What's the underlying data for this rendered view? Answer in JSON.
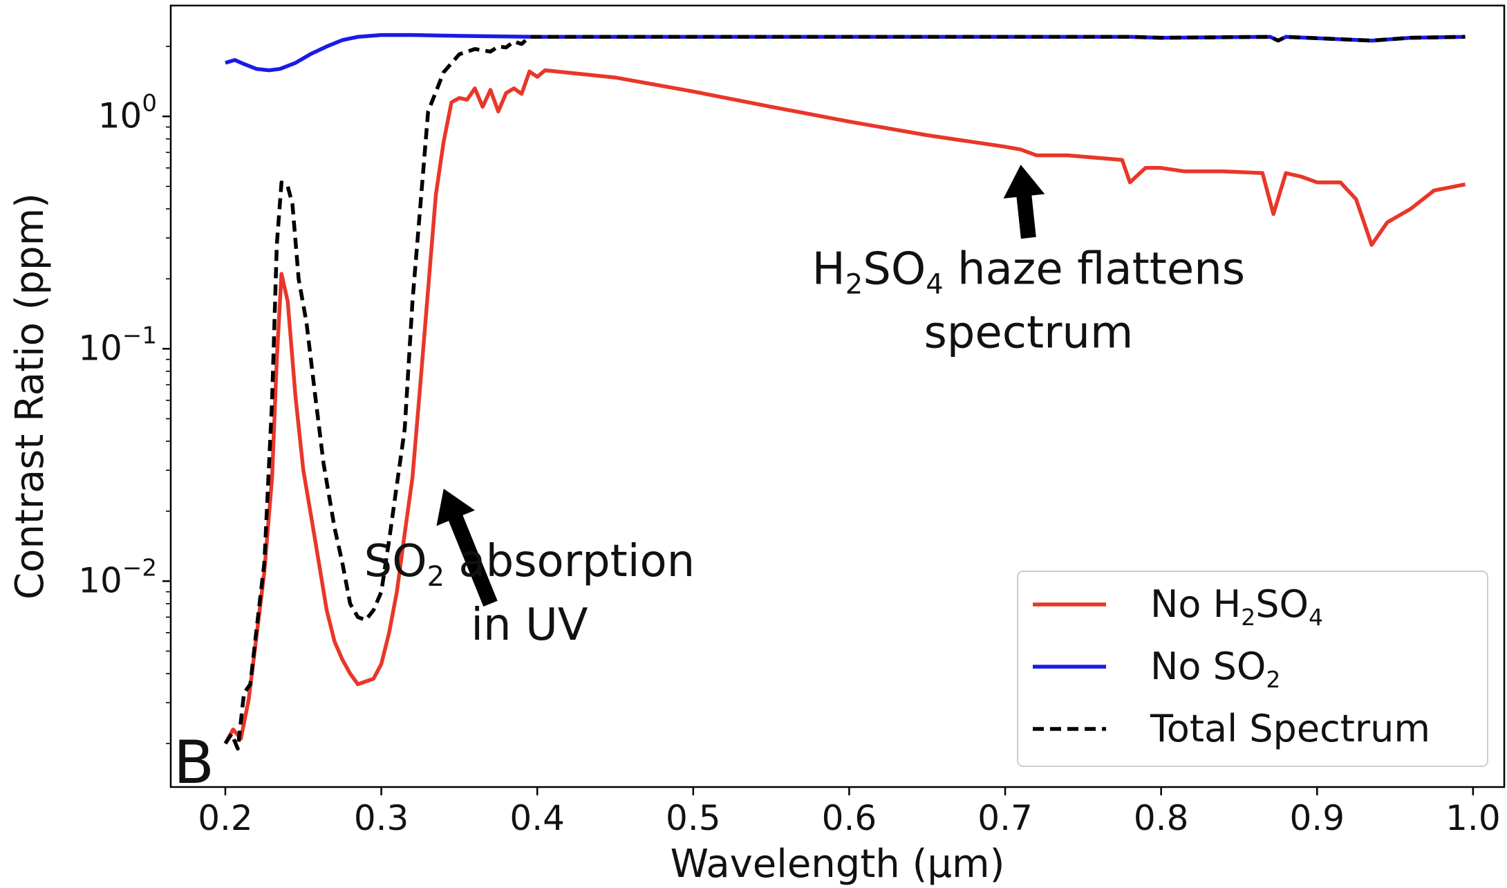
{
  "chart_data": {
    "type": "line",
    "title": "",
    "panel_label": "B",
    "xlabel": "Wavelength (μm)",
    "ylabel": "Contrast Ratio (ppm)",
    "yscale": "log",
    "xlim": [
      0.165,
      1.02
    ],
    "ylim": [
      0.0013,
      3.0
    ],
    "xticks": [
      {
        "value": 0.2,
        "label": "0.2"
      },
      {
        "value": 0.3,
        "label": "0.3"
      },
      {
        "value": 0.4,
        "label": "0.4"
      },
      {
        "value": 0.5,
        "label": "0.5"
      },
      {
        "value": 0.6,
        "label": "0.6"
      },
      {
        "value": 0.7,
        "label": "0.7"
      },
      {
        "value": 0.8,
        "label": "0.8"
      },
      {
        "value": 0.9,
        "label": "0.9"
      },
      {
        "value": 1.0,
        "label": "1.0"
      }
    ],
    "yticks": [
      {
        "value": 0.01,
        "base": "10",
        "exp": "−2"
      },
      {
        "value": 0.1,
        "base": "10",
        "exp": "−1"
      },
      {
        "value": 1,
        "base": "10",
        "exp": "0"
      }
    ],
    "series": [
      {
        "name": "No H2SO4",
        "legend_parts": [
          [
            "No H",
            ""
          ],
          [
            "2",
            "sub"
          ],
          [
            "SO",
            ""
          ],
          [
            "4",
            "sub"
          ]
        ],
        "color": "#e8372a",
        "dash": "solid",
        "x": [
          0.2,
          0.205,
          0.21,
          0.215,
          0.22,
          0.225,
          0.23,
          0.233,
          0.236,
          0.24,
          0.245,
          0.25,
          0.255,
          0.26,
          0.265,
          0.27,
          0.275,
          0.28,
          0.285,
          0.29,
          0.295,
          0.3,
          0.305,
          0.31,
          0.315,
          0.32,
          0.325,
          0.33,
          0.335,
          0.34,
          0.345,
          0.35,
          0.355,
          0.36,
          0.365,
          0.37,
          0.375,
          0.38,
          0.385,
          0.39,
          0.395,
          0.4,
          0.405,
          0.45,
          0.5,
          0.55,
          0.6,
          0.65,
          0.7,
          0.71,
          0.72,
          0.74,
          0.775,
          0.78,
          0.79,
          0.8,
          0.815,
          0.84,
          0.865,
          0.872,
          0.88,
          0.89,
          0.9,
          0.915,
          0.925,
          0.935,
          0.945,
          0.96,
          0.975,
          0.995
        ],
        "y": [
          0.002,
          0.0023,
          0.0021,
          0.0031,
          0.0058,
          0.011,
          0.028,
          0.09,
          0.21,
          0.16,
          0.062,
          0.03,
          0.019,
          0.012,
          0.0075,
          0.0055,
          0.0046,
          0.004,
          0.0036,
          0.0037,
          0.0038,
          0.0044,
          0.006,
          0.009,
          0.016,
          0.028,
          0.07,
          0.18,
          0.46,
          0.78,
          1.15,
          1.2,
          1.18,
          1.32,
          1.1,
          1.3,
          1.05,
          1.26,
          1.32,
          1.25,
          1.56,
          1.48,
          1.58,
          1.47,
          1.28,
          1.1,
          0.95,
          0.83,
          0.74,
          0.72,
          0.68,
          0.68,
          0.65,
          0.52,
          0.6,
          0.6,
          0.58,
          0.58,
          0.57,
          0.38,
          0.57,
          0.55,
          0.52,
          0.52,
          0.44,
          0.28,
          0.35,
          0.4,
          0.48,
          0.51
        ]
      },
      {
        "name": "No SO2",
        "legend_parts": [
          [
            "No SO",
            ""
          ],
          [
            "2",
            "sub"
          ]
        ],
        "color": "#1a1ae8",
        "dash": "solid",
        "x": [
          0.2,
          0.206,
          0.212,
          0.22,
          0.228,
          0.235,
          0.245,
          0.255,
          0.265,
          0.275,
          0.285,
          0.3,
          0.32,
          0.35,
          0.4,
          0.5,
          0.6,
          0.7,
          0.78,
          0.8,
          0.87,
          0.875,
          0.88,
          0.935,
          0.96,
          0.995
        ],
        "y": [
          1.7,
          1.75,
          1.68,
          1.6,
          1.58,
          1.6,
          1.7,
          1.86,
          2.0,
          2.13,
          2.2,
          2.24,
          2.24,
          2.22,
          2.2,
          2.2,
          2.2,
          2.2,
          2.2,
          2.18,
          2.2,
          2.12,
          2.2,
          2.12,
          2.18,
          2.2
        ]
      },
      {
        "name": "Total Spectrum",
        "legend_parts": [
          [
            "Total Spectrum",
            ""
          ]
        ],
        "color": "#000000",
        "dash": "dashed",
        "x": [
          0.2,
          0.204,
          0.208,
          0.212,
          0.216,
          0.22,
          0.225,
          0.23,
          0.233,
          0.236,
          0.24,
          0.243,
          0.247,
          0.252,
          0.258,
          0.263,
          0.27,
          0.275,
          0.28,
          0.285,
          0.29,
          0.295,
          0.3,
          0.305,
          0.31,
          0.315,
          0.32,
          0.33,
          0.34,
          0.35,
          0.36,
          0.37,
          0.375,
          0.38,
          0.385,
          0.39,
          0.395,
          0.4,
          0.5,
          0.6,
          0.7,
          0.78,
          0.8,
          0.87,
          0.875,
          0.88,
          0.935,
          0.96,
          0.995
        ],
        "y": [
          0.002,
          0.0022,
          0.0019,
          0.0033,
          0.0036,
          0.0062,
          0.012,
          0.06,
          0.28,
          0.52,
          0.5,
          0.42,
          0.2,
          0.13,
          0.06,
          0.032,
          0.017,
          0.012,
          0.008,
          0.007,
          0.0068,
          0.0075,
          0.009,
          0.015,
          0.026,
          0.045,
          0.16,
          1.05,
          1.55,
          1.85,
          1.95,
          1.9,
          2.0,
          1.98,
          2.1,
          2.05,
          2.2,
          2.2,
          2.2,
          2.2,
          2.2,
          2.2,
          2.18,
          2.2,
          2.12,
          2.2,
          2.12,
          2.18,
          2.2
        ]
      }
    ],
    "annotations": [
      {
        "parts": [
          [
            "SO",
            ""
          ],
          [
            "2",
            "sub"
          ],
          [
            " absorption",
            ""
          ]
        ],
        "line2": "in UV",
        "arrow_from": [
          0.37,
          0.008
        ],
        "arrow_to": [
          0.34,
          0.025
        ],
        "text_at": [
          0.395,
          0.0105
        ]
      },
      {
        "parts": [
          [
            "H",
            ""
          ],
          [
            "2",
            "sub"
          ],
          [
            "SO",
            ""
          ],
          [
            "4",
            "sub"
          ],
          [
            " haze flattens",
            ""
          ]
        ],
        "line2": "spectrum",
        "arrow_from": [
          0.715,
          0.3
        ],
        "arrow_to": [
          0.71,
          0.62
        ],
        "text_at": [
          0.715,
          0.19
        ]
      }
    ],
    "legend_position": "lower-right"
  }
}
